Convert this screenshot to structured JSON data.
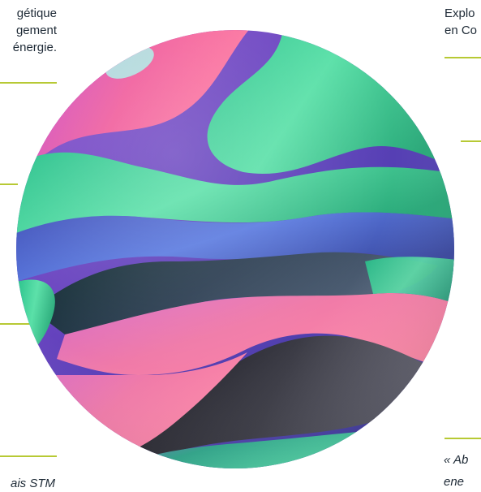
{
  "left_text": {
    "lines": [
      "gétique",
      "gement",
      "énergie."
    ]
  },
  "right_text": {
    "lines": [
      "Explo",
      "en Co"
    ]
  },
  "quote": {
    "line1": "« Ab",
    "line2": "ene"
  },
  "left_bottom": {
    "text": "ais STM"
  },
  "colors": {
    "accent_rule": "#b7c934",
    "text": "#1e2a36"
  },
  "illustration": {
    "name": "gradient-wave-sphere"
  }
}
